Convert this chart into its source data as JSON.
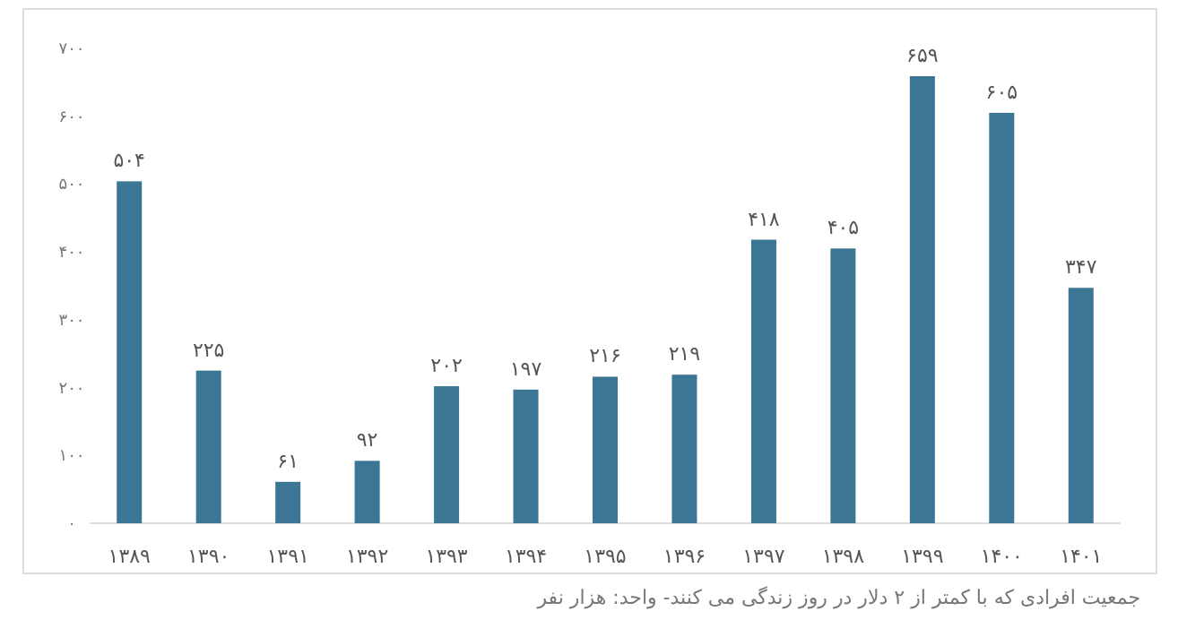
{
  "chart_data": {
    "type": "bar",
    "categories": [
      "۱۳۸۹",
      "۱۳۹۰",
      "۱۳۹۱",
      "۱۳۹۲",
      "۱۳۹۳",
      "۱۳۹۴",
      "۱۳۹۵",
      "۱۳۹۶",
      "۱۳۹۷",
      "۱۳۹۸",
      "۱۳۹۹",
      "۱۴۰۰",
      "۱۴۰۱"
    ],
    "values": [
      504,
      225,
      61,
      92,
      202,
      197,
      216,
      219,
      418,
      405,
      659,
      605,
      347
    ],
    "value_labels": [
      "۵۰۴",
      "۲۲۵",
      "۶۱",
      "۹۲",
      "۲۰۲",
      "۱۹۷",
      "۲۱۶",
      "۲۱۹",
      "۴۱۸",
      "۴۰۵",
      "۶۵۹",
      "۶۰۵",
      "۳۴۷"
    ],
    "color": "#3b7794",
    "ylim": [
      0,
      700
    ],
    "yticks": [
      {
        "value": 0,
        "label": "۰"
      },
      {
        "value": 100,
        "label": "۱۰۰"
      },
      {
        "value": 200,
        "label": "۲۰۰"
      },
      {
        "value": 300,
        "label": "۳۰۰"
      },
      {
        "value": 400,
        "label": "۴۰۰"
      },
      {
        "value": 500,
        "label": "۵۰۰"
      },
      {
        "value": 600,
        "label": "۶۰۰"
      },
      {
        "value": 700,
        "label": "۷۰۰"
      }
    ],
    "annotations": [
      "جمعیت افرادی که با کمتر از ۲ دلار در روز زندگی می کنند- واحد: هزار نفر"
    ]
  }
}
